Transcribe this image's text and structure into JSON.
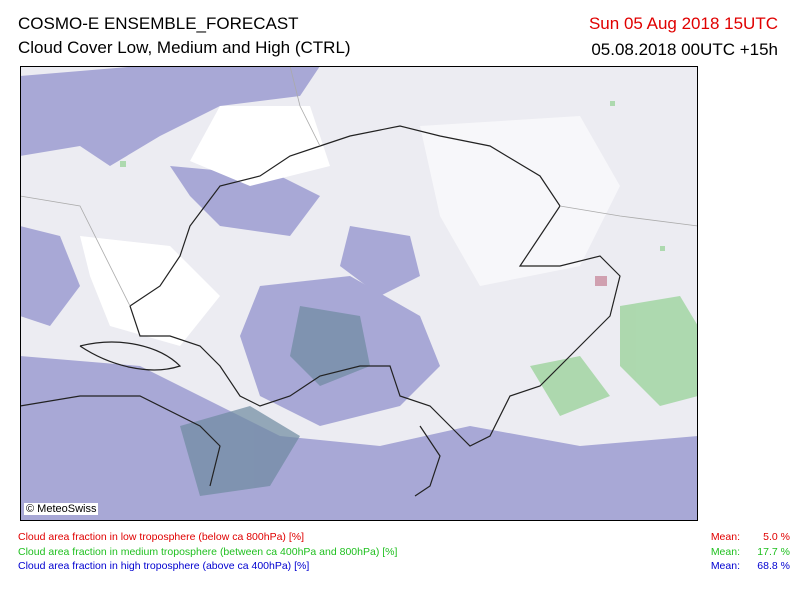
{
  "header": {
    "title": "COSMO-E ENSEMBLE_FORECAST",
    "subtitle": "Cloud Cover Low, Medium and High (CTRL)",
    "valid_time": "Sun 05 Aug 2018 15UTC",
    "run_time": "05.08.2018 00UTC +15h"
  },
  "map": {
    "copyright": "© MeteoSwiss"
  },
  "legend": {
    "rows": [
      {
        "label": "Cloud area fraction in low troposphere (below ca 800hPa) [%]",
        "mean_label": "Mean:",
        "mean_value": "5.0 %",
        "color": "#e00000"
      },
      {
        "label": "Cloud area fraction in medium troposphere (between ca 400hPa and 800hPa) [%]",
        "mean_label": "Mean:",
        "mean_value": "17.7 %",
        "color": "#20c020"
      },
      {
        "label": "Cloud area fraction in high troposphere (above ca 400hPa) [%]",
        "mean_label": "Mean:",
        "mean_value": "68.8 %",
        "color": "#0000d0"
      }
    ]
  }
}
